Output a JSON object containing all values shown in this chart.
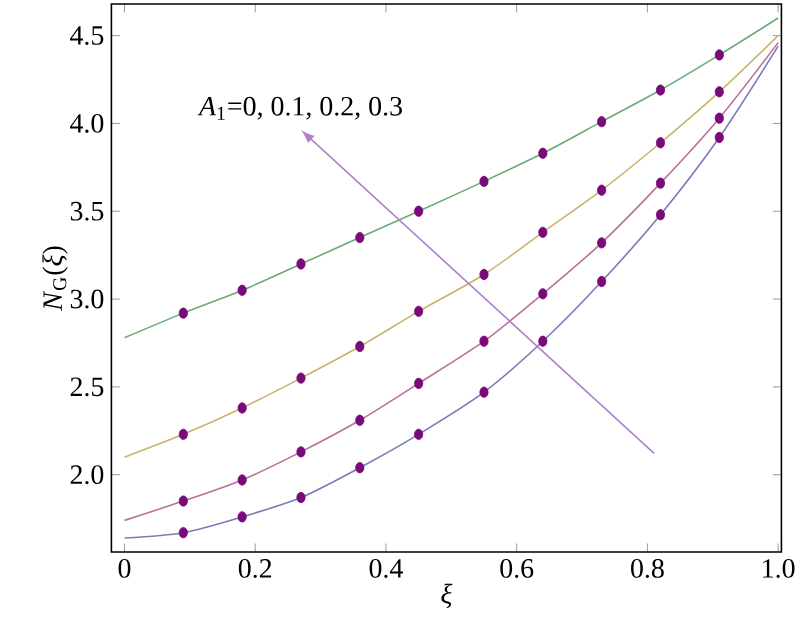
{
  "chart_data": {
    "type": "line",
    "xlabel": "ξ",
    "ylabel": "*N*$_{G}$(*ξ*)",
    "xlim": [
      -0.02,
      1.005
    ],
    "ylim": [
      1.56,
      4.68
    ],
    "xticks": [
      0,
      {
        "value": 0.2,
        "label": "0.2"
      },
      {
        "value": 0.4,
        "label": "0.4"
      },
      {
        "value": 0.6,
        "label": "0.6"
      },
      {
        "value": 0.8,
        "label": "0.8"
      },
      {
        "value": 1,
        "label": "1.0"
      }
    ],
    "yticks": [
      {
        "value": 2,
        "label": "2.0"
      },
      {
        "value": 2.5,
        "label": "2.5"
      },
      {
        "value": 3,
        "label": "3.0"
      },
      {
        "value": 3.5,
        "label": "3.5"
      },
      {
        "value": 4,
        "label": "4.0"
      },
      {
        "value": 4.5,
        "label": "4.5"
      }
    ],
    "grid": false,
    "annotations": [
      "*A*$_{1}$=0, 0.1, 0.2, 0.3"
    ],
    "series": [
      {
        "color": "#6aaa78",
        "x": [
          0,
          0.09,
          0.18,
          0.27,
          0.36,
          0.45,
          0.55,
          0.64,
          0.73,
          0.82,
          0.91,
          1
        ],
        "values": [
          2.78,
          2.92,
          3.05,
          3.2,
          3.35,
          3.5,
          3.67,
          3.83,
          4.01,
          4.19,
          4.39,
          4.6
        ]
      },
      {
        "color": "#c8b468",
        "x": [
          0,
          0.09,
          0.18,
          0.27,
          0.36,
          0.45,
          0.55,
          0.64,
          0.73,
          0.82,
          0.91,
          1
        ],
        "values": [
          2.1,
          2.23,
          2.38,
          2.55,
          2.73,
          2.93,
          3.14,
          3.38,
          3.62,
          3.89,
          4.18,
          4.5
        ]
      },
      {
        "color": "#b8729a",
        "x": [
          0,
          0.09,
          0.18,
          0.27,
          0.36,
          0.45,
          0.55,
          0.64,
          0.73,
          0.82,
          0.91,
          1
        ],
        "values": [
          1.74,
          1.85,
          1.97,
          2.13,
          2.31,
          2.52,
          2.76,
          3.03,
          3.32,
          3.66,
          4.03,
          4.46
        ]
      },
      {
        "color": "#7a7ab8",
        "x": [
          0,
          0.09,
          0.18,
          0.27,
          0.36,
          0.45,
          0.55,
          0.64,
          0.73,
          0.82,
          0.91,
          1
        ],
        "values": [
          1.64,
          1.67,
          1.76,
          1.87,
          2.04,
          2.23,
          2.47,
          2.76,
          3.1,
          3.48,
          3.92,
          4.44
        ]
      },
      {
        "type": "scatter",
        "marker": "circle",
        "color": "#7a0a7a",
        "x": [
          0.09,
          0.18,
          0.27,
          0.36,
          0.45,
          0.55,
          0.64,
          0.73,
          0.82,
          0.91
        ],
        "values": [
          2.92,
          3.05,
          3.2,
          3.35,
          3.5,
          3.67,
          3.83,
          4.01,
          4.19,
          4.39
        ]
      },
      {
        "type": "scatter",
        "marker": "circle",
        "color": "#7a0a7a",
        "x": [
          0.09,
          0.18,
          0.27,
          0.36,
          0.45,
          0.55,
          0.64,
          0.73,
          0.82,
          0.91
        ],
        "values": [
          2.23,
          2.38,
          2.55,
          2.73,
          2.93,
          3.14,
          3.38,
          3.62,
          3.89,
          4.18
        ]
      },
      {
        "type": "scatter",
        "marker": "circle",
        "color": "#7a0a7a",
        "x": [
          0.09,
          0.18,
          0.27,
          0.36,
          0.45,
          0.55,
          0.64,
          0.73,
          0.82,
          0.91
        ],
        "values": [
          1.85,
          1.97,
          2.13,
          2.31,
          2.52,
          2.76,
          3.03,
          3.32,
          3.66,
          4.03
        ]
      },
      {
        "type": "scatter",
        "marker": "circle",
        "color": "#7a0a7a",
        "x": [
          0.09,
          0.18,
          0.27,
          0.36,
          0.45,
          0.55,
          0.64,
          0.73,
          0.82,
          0.91
        ],
        "values": [
          1.67,
          1.76,
          1.87,
          2.04,
          2.23,
          2.47,
          2.76,
          3.1,
          3.48,
          3.92
        ]
      }
    ]
  }
}
